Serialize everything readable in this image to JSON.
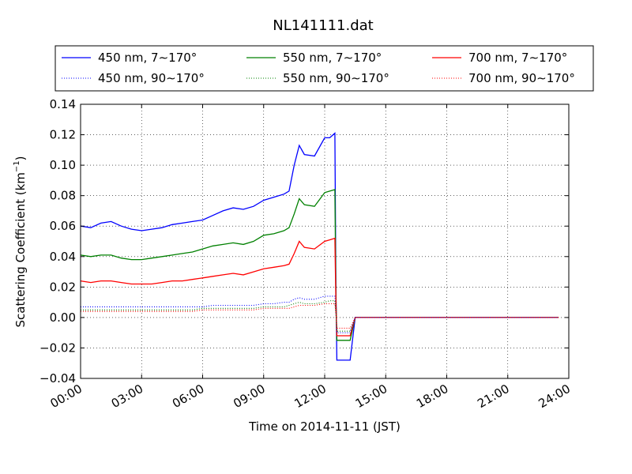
{
  "chart_data": {
    "type": "line",
    "title": "NL141111.dat",
    "xlabel": "Time on 2014-11-11 (JST)",
    "ylabel": "Scattering Coefficient (km",
    "ylabel_exponent": "−1",
    "ylabel_suffix": ")",
    "xlim": [
      "00:00",
      "24:00"
    ],
    "ylim": [
      -0.04,
      0.14
    ],
    "x_ticks": [
      "00:00",
      "03:00",
      "06:00",
      "09:00",
      "12:00",
      "15:00",
      "18:00",
      "21:00",
      "24:00"
    ],
    "y_ticks": [
      "−0.04",
      "−0.02",
      "0.00",
      "0.02",
      "0.04",
      "0.06",
      "0.08",
      "0.10",
      "0.12",
      "0.14"
    ],
    "grid": true,
    "legend_position": "top",
    "x": [
      "00:00",
      "00:30",
      "01:00",
      "01:30",
      "02:00",
      "02:30",
      "03:00",
      "03:30",
      "04:00",
      "04:30",
      "05:00",
      "05:30",
      "06:00",
      "06:30",
      "07:00",
      "07:30",
      "08:00",
      "08:30",
      "09:00",
      "09:30",
      "10:00",
      "10:15",
      "10:30",
      "10:45",
      "11:00",
      "11:30",
      "12:00",
      "12:15",
      "12:30",
      "12:33",
      "12:36",
      "13:00",
      "13:15",
      "13:30",
      "15:00",
      "18:00",
      "21:00",
      "23:30"
    ],
    "series": [
      {
        "name": "450 nm, 7∼170°",
        "color": "#0000ff",
        "style": "solid",
        "values": [
          0.06,
          0.059,
          0.062,
          0.063,
          0.06,
          0.058,
          0.057,
          0.058,
          0.059,
          0.061,
          0.062,
          0.063,
          0.064,
          0.067,
          0.07,
          0.072,
          0.071,
          0.073,
          0.077,
          0.079,
          0.081,
          0.083,
          0.1,
          0.113,
          0.107,
          0.106,
          0.118,
          0.118,
          0.121,
          0.02,
          -0.028,
          -0.028,
          -0.028,
          0.0,
          0.0,
          0.0,
          0.0,
          0.0
        ]
      },
      {
        "name": "550 nm, 7∼170°",
        "color": "#008000",
        "style": "solid",
        "values": [
          0.041,
          0.04,
          0.041,
          0.041,
          0.039,
          0.038,
          0.038,
          0.039,
          0.04,
          0.041,
          0.042,
          0.043,
          0.045,
          0.047,
          0.048,
          0.049,
          0.048,
          0.05,
          0.054,
          0.055,
          0.057,
          0.059,
          0.068,
          0.078,
          0.074,
          0.073,
          0.082,
          0.083,
          0.084,
          0.015,
          -0.015,
          -0.015,
          -0.015,
          0.0,
          0.0,
          0.0,
          0.0,
          0.0
        ]
      },
      {
        "name": "700 nm, 7∼170°",
        "color": "#ff0000",
        "style": "solid",
        "values": [
          0.024,
          0.023,
          0.024,
          0.024,
          0.023,
          0.022,
          0.022,
          0.022,
          0.023,
          0.024,
          0.024,
          0.025,
          0.026,
          0.027,
          0.028,
          0.029,
          0.028,
          0.03,
          0.032,
          0.033,
          0.034,
          0.035,
          0.042,
          0.05,
          0.046,
          0.045,
          0.05,
          0.051,
          0.052,
          0.01,
          -0.012,
          -0.012,
          -0.012,
          0.0,
          0.0,
          0.0,
          0.0,
          0.0
        ]
      },
      {
        "name": "450 nm, 90∼170°",
        "color": "#0000ff",
        "style": "dotted",
        "values": [
          0.007,
          0.007,
          0.007,
          0.007,
          0.007,
          0.007,
          0.007,
          0.007,
          0.007,
          0.007,
          0.007,
          0.007,
          0.007,
          0.008,
          0.008,
          0.008,
          0.008,
          0.008,
          0.009,
          0.009,
          0.01,
          0.01,
          0.012,
          0.013,
          0.012,
          0.012,
          0.014,
          0.014,
          0.014,
          0.004,
          -0.01,
          -0.01,
          -0.01,
          0.0,
          0.0,
          0.0,
          0.0,
          0.0
        ]
      },
      {
        "name": "550 nm, 90∼170°",
        "color": "#008000",
        "style": "dotted",
        "values": [
          0.005,
          0.005,
          0.005,
          0.005,
          0.005,
          0.005,
          0.005,
          0.005,
          0.005,
          0.005,
          0.005,
          0.005,
          0.006,
          0.006,
          0.006,
          0.006,
          0.006,
          0.006,
          0.007,
          0.007,
          0.007,
          0.008,
          0.009,
          0.01,
          0.009,
          0.009,
          0.01,
          0.011,
          0.011,
          0.003,
          -0.009,
          -0.009,
          -0.009,
          0.0,
          0.0,
          0.0,
          0.0,
          0.0
        ]
      },
      {
        "name": "700 nm, 90∼170°",
        "color": "#ff0000",
        "style": "dotted",
        "values": [
          0.004,
          0.004,
          0.004,
          0.004,
          0.004,
          0.004,
          0.004,
          0.004,
          0.004,
          0.004,
          0.004,
          0.004,
          0.005,
          0.005,
          0.005,
          0.005,
          0.005,
          0.005,
          0.006,
          0.006,
          0.006,
          0.006,
          0.007,
          0.008,
          0.008,
          0.008,
          0.009,
          0.009,
          0.009,
          0.002,
          -0.007,
          -0.007,
          -0.007,
          0.0,
          0.0,
          0.0,
          0.0,
          0.0
        ]
      }
    ],
    "legend_order": [
      0,
      1,
      2,
      3,
      4,
      5
    ]
  }
}
